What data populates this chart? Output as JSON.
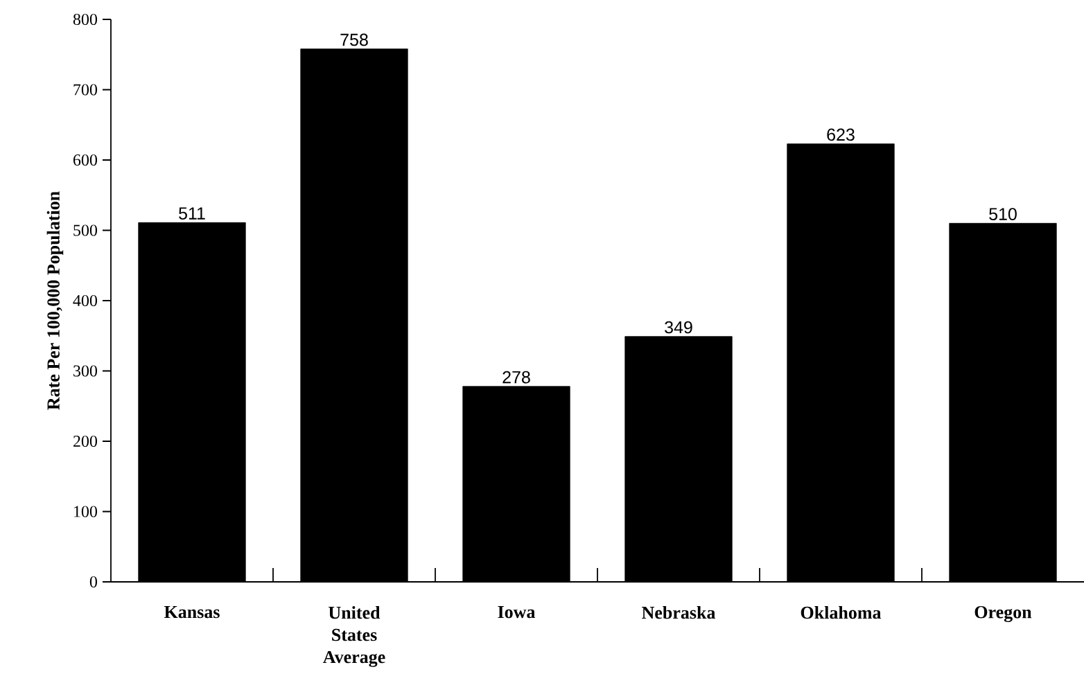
{
  "chart_data": {
    "type": "bar",
    "ylabel": "Rate Per 100,000 Population",
    "categories": [
      "Kansas",
      "United States Average",
      "Iowa",
      "Nebraska",
      "Oklahoma",
      "Oregon"
    ],
    "values": [
      511,
      758,
      278,
      349,
      623,
      510
    ],
    "color": "#000000",
    "ylim": [
      0,
      800
    ],
    "yticks": [
      0,
      100,
      200,
      300,
      400,
      500,
      600,
      700,
      800
    ],
    "data_labels": true
  }
}
